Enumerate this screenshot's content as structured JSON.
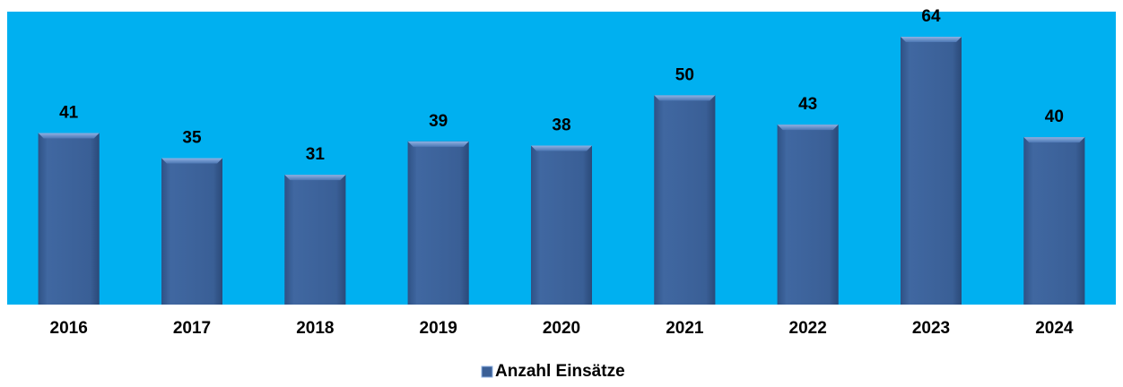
{
  "chart_data": {
    "type": "bar",
    "categories": [
      "2016",
      "2017",
      "2018",
      "2019",
      "2020",
      "2021",
      "2022",
      "2023",
      "2024"
    ],
    "series": [
      {
        "name": "Anzahl Einsätze",
        "color": "#3a5f96",
        "values": [
          41,
          35,
          31,
          39,
          38,
          50,
          43,
          64,
          40
        ]
      }
    ],
    "ylim": [
      0,
      70
    ],
    "plot_background": "#00b0f0",
    "legend": "bottom"
  }
}
